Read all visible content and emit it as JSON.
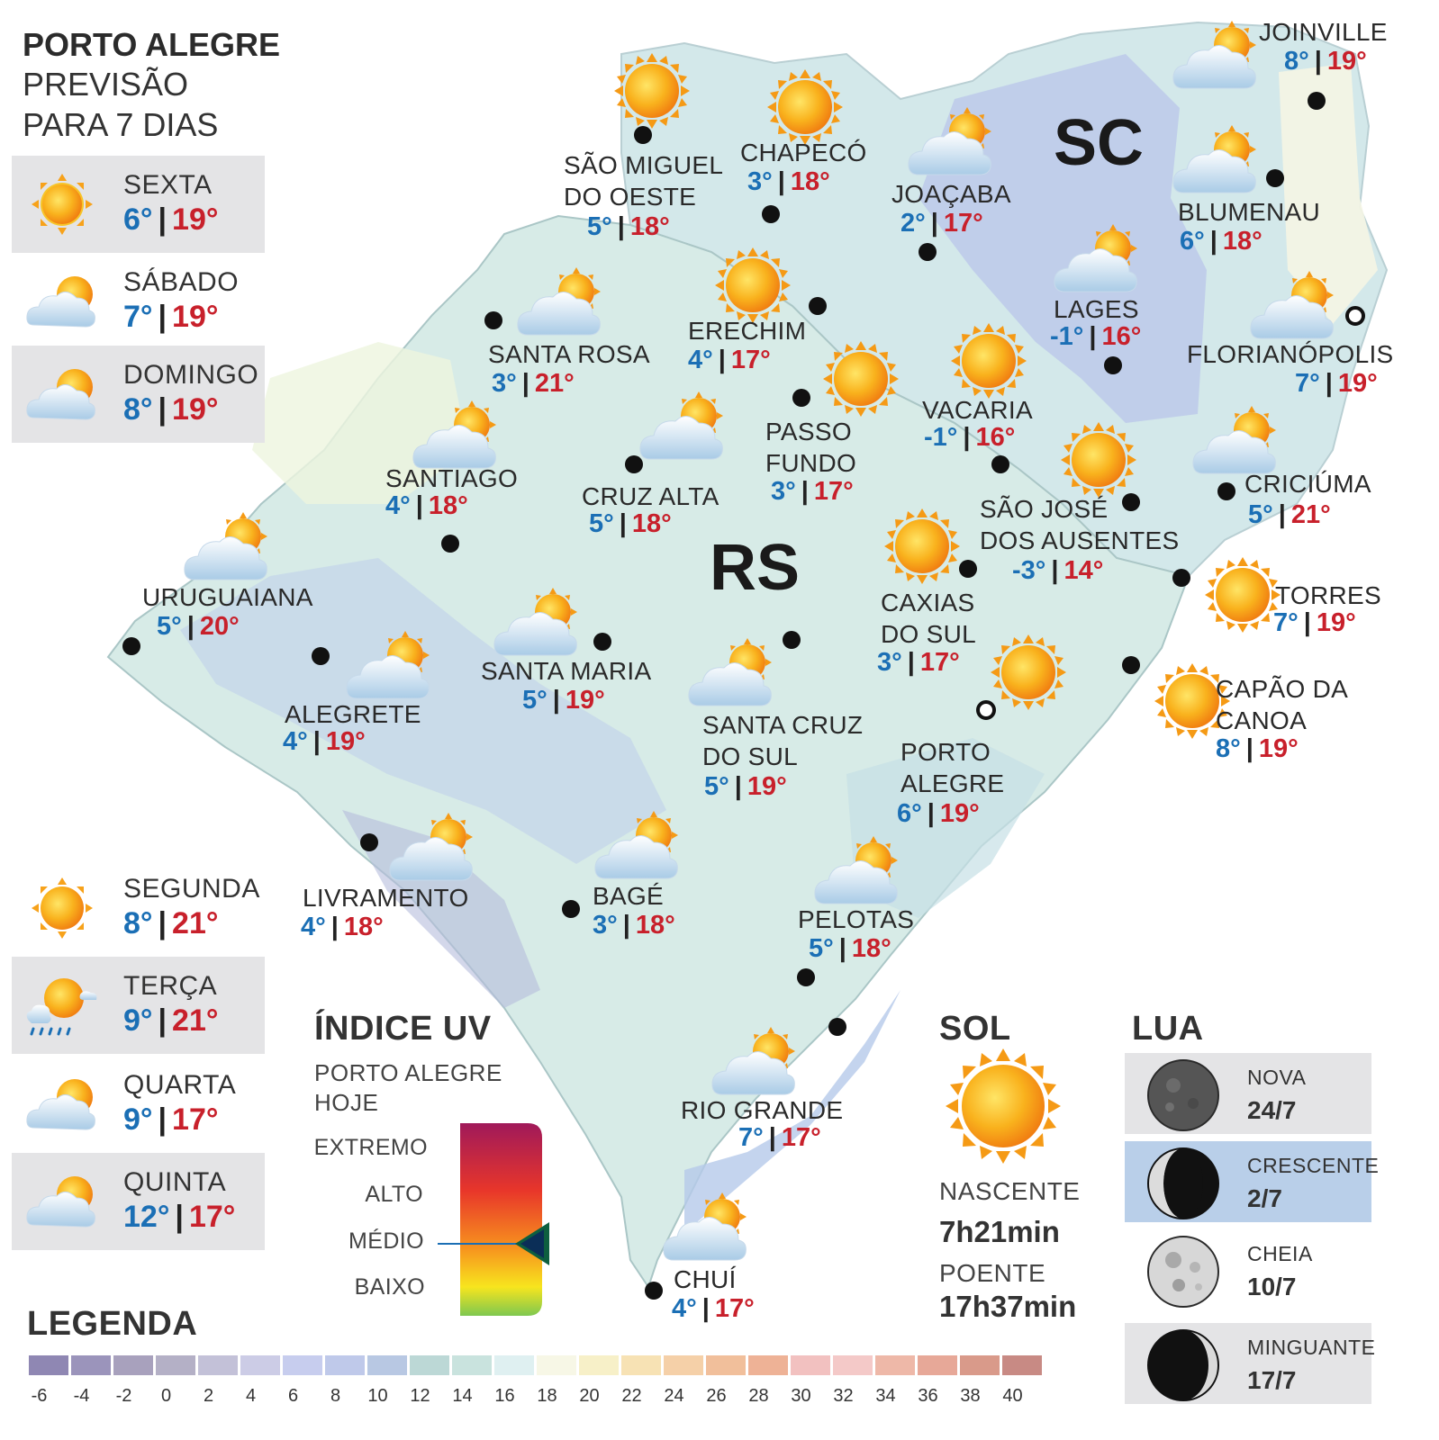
{
  "header": {
    "title": "PORTO ALEGRE",
    "subtitle_1": "PREVISÃO",
    "subtitle_2": "PARA 7 DIAS"
  },
  "forecast_top": [
    {
      "day": "SEXTA",
      "min": "6°",
      "max": "19°",
      "icon": "sun-icon"
    },
    {
      "day": "SÁBADO",
      "min": "7°",
      "max": "19°",
      "icon": "partly-cloudy-icon"
    },
    {
      "day": "DOMINGO",
      "min": "8°",
      "max": "19°",
      "icon": "partly-cloudy-icon"
    }
  ],
  "forecast_bottom": [
    {
      "day": "SEGUNDA",
      "min": "8°",
      "max": "21°",
      "icon": "sun-icon"
    },
    {
      "day": "TERÇA",
      "min": "9°",
      "max": "21°",
      "icon": "sun-rain-icon"
    },
    {
      "day": "QUARTA",
      "min": "9°",
      "max": "17°",
      "icon": "partly-cloudy-icon"
    },
    {
      "day": "QUINTA",
      "min": "12°",
      "max": "17°",
      "icon": "partly-cloudy-icon"
    }
  ],
  "states": {
    "rs": "RS",
    "sc": "SC"
  },
  "cities": [
    {
      "name": "SÃO MIGUEL\nDO OESTE",
      "min": "5°",
      "max": "18°",
      "icon": "sun-icon"
    },
    {
      "name": "CHAPECÓ",
      "min": "3°",
      "max": "18°",
      "icon": "sun-icon"
    },
    {
      "name": "JOAÇABA",
      "min": "2°",
      "max": "17°",
      "icon": "partly-cloudy-icon"
    },
    {
      "name": "JOINVILLE",
      "min": "8°",
      "max": "19°",
      "icon": "partly-cloudy-icon"
    },
    {
      "name": "BLUMENAU",
      "min": "6°",
      "max": "18°",
      "icon": "partly-cloudy-icon"
    },
    {
      "name": "LAGES",
      "min": "-1°",
      "max": "16°",
      "icon": "partly-cloudy-icon"
    },
    {
      "name": "FLORIANÓPOLIS",
      "min": "7°",
      "max": "19°",
      "icon": "partly-cloudy-icon"
    },
    {
      "name": "ERECHIM",
      "min": "4°",
      "max": "17°",
      "icon": "sun-icon"
    },
    {
      "name": "SANTA ROSA",
      "min": "3°",
      "max": "21°",
      "icon": "partly-cloudy-icon"
    },
    {
      "name": "PASSO\nFUNDO",
      "min": "3°",
      "max": "17°",
      "icon": "sun-icon"
    },
    {
      "name": "VACARIA",
      "min": "-1°",
      "max": "16°",
      "icon": "sun-icon"
    },
    {
      "name": "SANTIAGO",
      "min": "4°",
      "max": "18°",
      "icon": "partly-cloudy-icon"
    },
    {
      "name": "CRUZ ALTA",
      "min": "5°",
      "max": "18°",
      "icon": "partly-cloudy-icon"
    },
    {
      "name": "SÃO JOSÉ\nDOS AUSENTES",
      "min": "-3°",
      "max": "14°",
      "icon": "sun-icon"
    },
    {
      "name": "CRICIÚMA",
      "min": "5°",
      "max": "21°",
      "icon": "partly-cloudy-icon"
    },
    {
      "name": "URUGUAIANA",
      "min": "5°",
      "max": "20°",
      "icon": "partly-cloudy-icon"
    },
    {
      "name": "CAXIAS\nDO SUL",
      "min": "3°",
      "max": "17°",
      "icon": "sun-icon"
    },
    {
      "name": "TORRES",
      "min": "7°",
      "max": "19°",
      "icon": "sun-icon"
    },
    {
      "name": "SANTA MARIA",
      "min": "5°",
      "max": "19°",
      "icon": "partly-cloudy-icon"
    },
    {
      "name": "ALEGRETE",
      "min": "4°",
      "max": "19°",
      "icon": "partly-cloudy-icon"
    },
    {
      "name": "SANTA CRUZ\nDO SUL",
      "min": "5°",
      "max": "19°",
      "icon": "partly-cloudy-icon"
    },
    {
      "name": "PORTO\nALEGRE",
      "min": "6°",
      "max": "19°",
      "icon": "sun-icon"
    },
    {
      "name": "CAPÃO DA\nCANOA",
      "min": "8°",
      "max": "19°",
      "icon": "sun-icon"
    },
    {
      "name": "LIVRAMENTO",
      "min": "4°",
      "max": "18°",
      "icon": "partly-cloudy-icon"
    },
    {
      "name": "BAGÉ",
      "min": "3°",
      "max": "18°",
      "icon": "partly-cloudy-icon"
    },
    {
      "name": "PELOTAS",
      "min": "5°",
      "max": "18°",
      "icon": "partly-cloudy-icon"
    },
    {
      "name": "RIO GRANDE",
      "min": "7°",
      "max": "17°",
      "icon": "partly-cloudy-icon"
    },
    {
      "name": "CHUÍ",
      "min": "4°",
      "max": "17°",
      "icon": "partly-cloudy-icon"
    }
  ],
  "uv": {
    "title": "ÍNDICE UV",
    "subtitle_1": "PORTO ALEGRE",
    "subtitle_2": "HOJE",
    "levels": [
      "EXTREMO",
      "ALTO",
      "MÉDIO",
      "BAIXO"
    ],
    "current": "MÉDIO"
  },
  "sun": {
    "title": "SOL",
    "sunrise_label": "NASCENTE",
    "sunrise": "7h21min",
    "sunset_label": "POENTE",
    "sunset": "17h37min"
  },
  "moon": {
    "title": "LUA",
    "phases": [
      {
        "name": "NOVA",
        "date": "24/7",
        "icon": "new-moon-icon"
      },
      {
        "name": "CRESCENTE",
        "date": "2/7",
        "icon": "waxing-moon-icon"
      },
      {
        "name": "CHEIA",
        "date": "10/7",
        "icon": "full-moon-icon"
      },
      {
        "name": "MINGUANTE",
        "date": "17/7",
        "icon": "waning-moon-icon"
      }
    ]
  },
  "legend": {
    "title": "LEGENDA",
    "ticks": [
      "-6",
      "-4",
      "-2",
      "0",
      "2",
      "4",
      "6",
      "8",
      "10",
      "12",
      "14",
      "16",
      "18",
      "20",
      "22",
      "24",
      "26",
      "28",
      "30",
      "32",
      "34",
      "36",
      "38",
      "40"
    ],
    "colors": [
      "#8f87b3",
      "#9b94bb",
      "#a8a1bd",
      "#b4b0c6",
      "#c3c1d8",
      "#cccce6",
      "#c7cdee",
      "#bfc9ea",
      "#b8c8e3",
      "#bcd8d6",
      "#c9e3de",
      "#dff0f1",
      "#f7f7e6",
      "#f7f0c8",
      "#f7e2b4",
      "#f5d0a8",
      "#f1bf9b",
      "#eeb296",
      "#f2c1c0",
      "#f4c9c8",
      "#eeb8a8",
      "#e7a898",
      "#d99a8a",
      "#c88a84"
    ]
  }
}
